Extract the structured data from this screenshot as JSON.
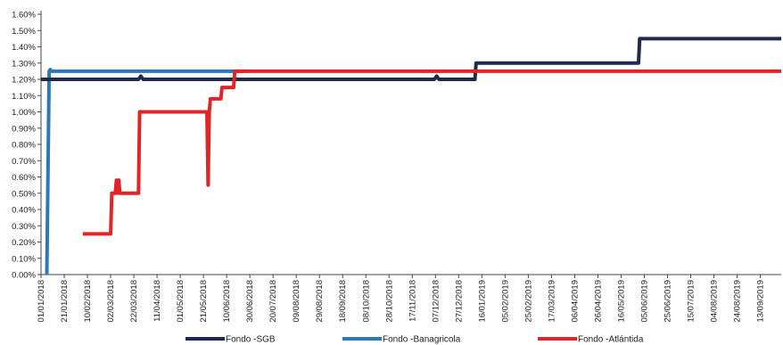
{
  "chart_data": {
    "type": "line",
    "title": "",
    "xlabel": "",
    "ylabel": "",
    "ylim": [
      0,
      1.6
    ],
    "grid": false,
    "legend_position": "bottom",
    "yticks": [
      {
        "value": 0.0,
        "label": "0.00%"
      },
      {
        "value": 0.1,
        "label": "0.10%"
      },
      {
        "value": 0.2,
        "label": "0.20%"
      },
      {
        "value": 0.3,
        "label": "0.30%"
      },
      {
        "value": 0.4,
        "label": "0.40%"
      },
      {
        "value": 0.5,
        "label": "0.50%"
      },
      {
        "value": 0.6,
        "label": "0.60%"
      },
      {
        "value": 0.7,
        "label": "0.70%"
      },
      {
        "value": 0.8,
        "label": "0.80%"
      },
      {
        "value": 0.9,
        "label": "0.90%"
      },
      {
        "value": 1.0,
        "label": "1.00%"
      },
      {
        "value": 1.1,
        "label": "1.10%"
      },
      {
        "value": 1.2,
        "label": "1.20%"
      },
      {
        "value": 1.3,
        "label": "1.30%"
      },
      {
        "value": 1.4,
        "label": "1.40%"
      },
      {
        "value": 1.5,
        "label": "1.50%"
      },
      {
        "value": 1.6,
        "label": "1.60%"
      }
    ],
    "xlim": [
      "2018-01-01",
      "2019-10-01"
    ],
    "xticks": [
      {
        "date": "2018-01-01",
        "label": "01/01/2018"
      },
      {
        "date": "2018-01-21",
        "label": "21/01/2018"
      },
      {
        "date": "2018-02-10",
        "label": "10/02/2018"
      },
      {
        "date": "2018-03-02",
        "label": "02/03/2018"
      },
      {
        "date": "2018-03-22",
        "label": "22/03/2018"
      },
      {
        "date": "2018-04-11",
        "label": "11/04/2018"
      },
      {
        "date": "2018-05-01",
        "label": "01/05/2018"
      },
      {
        "date": "2018-05-21",
        "label": "21/05/2018"
      },
      {
        "date": "2018-06-10",
        "label": "10/06/2018"
      },
      {
        "date": "2018-06-30",
        "label": "30/06/2018"
      },
      {
        "date": "2018-07-20",
        "label": "20/07/2018"
      },
      {
        "date": "2018-08-09",
        "label": "09/08/2018"
      },
      {
        "date": "2018-08-29",
        "label": "29/08/2018"
      },
      {
        "date": "2018-09-18",
        "label": "18/09/2018"
      },
      {
        "date": "2018-10-08",
        "label": "08/10/2018"
      },
      {
        "date": "2018-10-28",
        "label": "28/10/2018"
      },
      {
        "date": "2018-11-17",
        "label": "17/11/2018"
      },
      {
        "date": "2018-12-07",
        "label": "07/12/2018"
      },
      {
        "date": "2018-12-27",
        "label": "27/12/2018"
      },
      {
        "date": "2019-01-16",
        "label": "16/01/2019"
      },
      {
        "date": "2019-02-05",
        "label": "05/02/2019"
      },
      {
        "date": "2019-02-25",
        "label": "25/02/2019"
      },
      {
        "date": "2019-03-17",
        "label": "17/03/2019"
      },
      {
        "date": "2019-04-06",
        "label": "06/04/2019"
      },
      {
        "date": "2019-04-26",
        "label": "26/04/2019"
      },
      {
        "date": "2019-05-16",
        "label": "16/05/2019"
      },
      {
        "date": "2019-06-05",
        "label": "05/06/2019"
      },
      {
        "date": "2019-06-25",
        "label": "25/06/2019"
      },
      {
        "date": "2019-07-15",
        "label": "15/07/2019"
      },
      {
        "date": "2019-08-04",
        "label": "04/08/2019"
      },
      {
        "date": "2019-08-24",
        "label": "24/08/2019"
      },
      {
        "date": "2019-09-13",
        "label": "13/09/2019"
      }
    ],
    "series": [
      {
        "name": "Fondo -SGB",
        "color": "#1f2a4f",
        "points": [
          [
            "2018-01-01",
            1.2
          ],
          [
            "2018-03-26",
            1.2
          ],
          [
            "2018-03-28",
            1.22
          ],
          [
            "2018-03-30",
            1.2
          ],
          [
            "2018-12-06",
            1.2
          ],
          [
            "2018-12-08",
            1.22
          ],
          [
            "2018-12-10",
            1.2
          ],
          [
            "2019-01-10",
            1.2
          ],
          [
            "2019-01-11",
            1.3
          ],
          [
            "2019-05-31",
            1.3
          ],
          [
            "2019-06-01",
            1.45
          ],
          [
            "2019-10-01",
            1.45
          ]
        ]
      },
      {
        "name": "Fondo -Banagricola",
        "color": "#2f78b8",
        "points": [
          [
            "2018-01-06",
            0.0
          ],
          [
            "2018-01-08",
            1.25
          ],
          [
            "2018-01-09",
            1.26
          ],
          [
            "2018-01-10",
            1.25
          ],
          [
            "2018-06-26",
            1.25
          ]
        ]
      },
      {
        "name": "Fondo -Atlántida",
        "color": "#e22427",
        "points": [
          [
            "2018-02-06",
            0.25
          ],
          [
            "2018-03-02",
            0.25
          ],
          [
            "2018-03-03",
            0.5
          ],
          [
            "2018-03-06",
            0.5
          ],
          [
            "2018-03-07",
            0.58
          ],
          [
            "2018-03-08",
            0.5
          ],
          [
            "2018-03-09",
            0.58
          ],
          [
            "2018-03-10",
            0.5
          ],
          [
            "2018-03-26",
            0.5
          ],
          [
            "2018-03-27",
            1.0
          ],
          [
            "2018-05-24",
            1.0
          ],
          [
            "2018-05-25",
            0.55
          ],
          [
            "2018-05-26",
            1.0
          ],
          [
            "2018-05-27",
            1.08
          ],
          [
            "2018-06-05",
            1.08
          ],
          [
            "2018-06-06",
            1.15
          ],
          [
            "2018-06-16",
            1.15
          ],
          [
            "2018-06-17",
            1.25
          ],
          [
            "2019-10-01",
            1.25
          ]
        ]
      }
    ]
  }
}
